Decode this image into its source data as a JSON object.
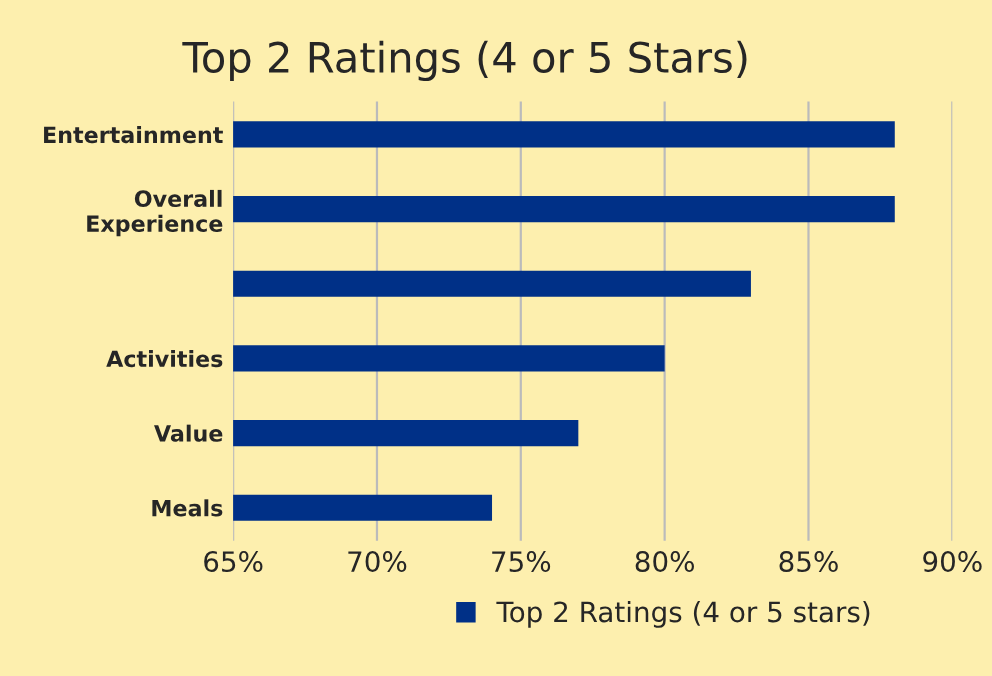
{
  "chart_data": {
    "type": "bar",
    "orientation": "horizontal",
    "title": "Top 2 Ratings (4 or 5 Stars)",
    "categories": [
      "Entertainment",
      "Overall\nExperience",
      null,
      "Activities",
      "Value",
      "Meals"
    ],
    "series": [
      {
        "name": "Top 2 Ratings (4 or 5 stars)",
        "color": "#003087",
        "values": [
          88,
          88,
          83,
          80,
          77,
          74
        ]
      }
    ],
    "xlim": [
      65,
      90
    ],
    "xticks": [
      {
        "value": 65,
        "label": "65%"
      },
      {
        "value": 70,
        "label": "70%"
      },
      {
        "value": 75,
        "label": "75%"
      },
      {
        "value": 80,
        "label": "80%"
      },
      {
        "value": 85,
        "label": "85%"
      },
      {
        "value": 90,
        "label": "90%"
      }
    ],
    "grid": "x",
    "legend": "bottom"
  }
}
